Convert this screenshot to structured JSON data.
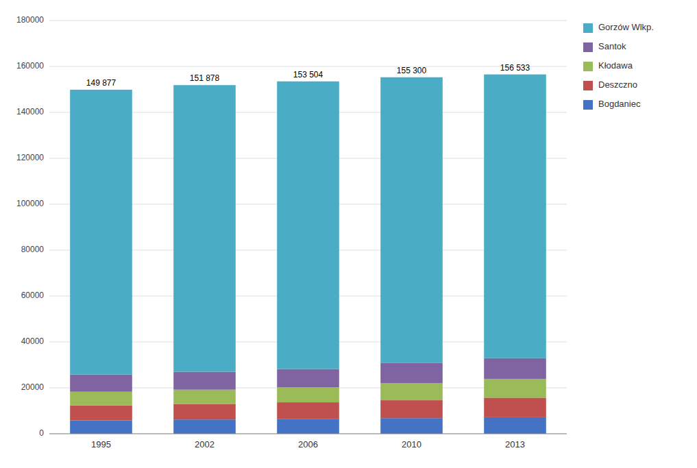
{
  "chart_data": {
    "type": "bar",
    "stacked": true,
    "categories": [
      "1995",
      "2002",
      "2006",
      "2010",
      "2013"
    ],
    "series": [
      {
        "name": "Bogdaniec",
        "color": "#4472C4",
        "values": [
          5800,
          6200,
          6500,
          6800,
          7200
        ]
      },
      {
        "name": "Deszczno",
        "color": "#C0504D",
        "values": [
          6500,
          6800,
          7200,
          7800,
          8500
        ]
      },
      {
        "name": "Kłodawa",
        "color": "#9BBB59",
        "values": [
          6000,
          6200,
          6500,
          7500,
          8200
        ]
      },
      {
        "name": "Santok",
        "color": "#8064A2",
        "values": [
          7500,
          7800,
          8000,
          8700,
          9000
        ]
      },
      {
        "name": "Gorzów Wlkp.",
        "color": "#4BACC6",
        "values": [
          124077,
          124878,
          125304,
          124500,
          123633
        ]
      }
    ],
    "totals": [
      149877,
      151878,
      153504,
      155300,
      156533
    ],
    "total_labels": [
      "149 877",
      "151 878",
      "153 504",
      "155 300",
      "156 533"
    ],
    "ylim": [
      0,
      180000
    ],
    "yticks": [
      0,
      20000,
      40000,
      60000,
      80000,
      100000,
      120000,
      140000,
      160000,
      180000
    ],
    "grid": true,
    "legend": "right"
  }
}
